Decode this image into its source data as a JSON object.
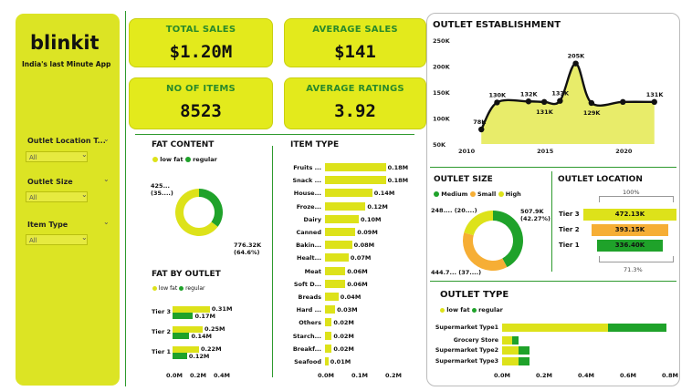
{
  "colors": {
    "yellow": "#dde21a",
    "green": "#1fa22a",
    "orange": "#f6ae35",
    "accent": "#e3ea1c"
  },
  "sidebar": {
    "logo": "blinkit",
    "tagline": "India's last Minute App",
    "filters": [
      {
        "label": "Outlet Location T...",
        "value": "All"
      },
      {
        "label": "Outlet Size",
        "value": "All"
      },
      {
        "label": "Item Type",
        "value": "All"
      }
    ]
  },
  "kpis": [
    {
      "label": "TOTAL SALES",
      "value": "$1.20M"
    },
    {
      "label": "AVERAGE SALES",
      "value": "$141"
    },
    {
      "label": "NO OF ITEMS",
      "value": "8523"
    },
    {
      "label": "AVERAGE RATINGS",
      "value": "3.92"
    }
  ],
  "fat_content": {
    "title": "FAT CONTENT",
    "legend": [
      "low fat",
      "regular"
    ],
    "label_regular_a": "425...",
    "label_regular_b": "(35....)",
    "label_low_a": "776.32K",
    "label_low_b": "(64.6%)"
  },
  "fat_by_outlet": {
    "title": "FAT BY OUTLET",
    "legend": [
      "low fat",
      "regular"
    ],
    "tiers": [
      "Tier 3",
      "Tier 2",
      "Tier 1"
    ],
    "x_ticks": [
      "0.0M",
      "0.2M",
      "0.4M"
    ]
  },
  "item_type": {
    "title": "ITEM TYPE",
    "x_ticks": [
      "0.0M",
      "0.1M",
      "0.2M"
    ]
  },
  "outlet_establishment": {
    "title": "OUTLET ESTABLISHMENT"
  },
  "outlet_size": {
    "title": "OUTLET SIZE",
    "legend": [
      "Medium",
      "Small",
      "High"
    ],
    "label_left_a": "248.... (20....)",
    "label_right_a": "507.9K",
    "label_right_b": "(42.27%)",
    "label_bottom": "444.7... (37....)"
  },
  "outlet_location": {
    "title": "OUTLET LOCATION",
    "top_pct": "100%",
    "bottom_pct": "71.3%",
    "tiers": [
      "Tier 3",
      "Tier 2",
      "Tier 1"
    ],
    "values": [
      "472.13K",
      "393.15K",
      "336.40K"
    ]
  },
  "outlet_type": {
    "title": "OUTLET TYPE",
    "legend": [
      "low fat",
      "regular"
    ],
    "x_ticks": [
      "0.0M",
      "0.2M",
      "0.4M",
      "0.6M",
      "0.8M"
    ]
  },
  "chart_data": [
    {
      "type": "line",
      "title": "OUTLET ESTABLISHMENT",
      "x": [
        2011,
        2012,
        2014,
        2015,
        2016,
        2017,
        2018,
        2020,
        2022
      ],
      "values": [
        78,
        130,
        132,
        131,
        133,
        205,
        129,
        131,
        131
      ],
      "data_labels": [
        "78K",
        "130K",
        "132K",
        "131K",
        "133K",
        "205K",
        "129K",
        "",
        "131K"
      ],
      "x_ticks": [
        "2010",
        "2015",
        "2020"
      ],
      "y_ticks": [
        "250K",
        "200K",
        "150K",
        "100K",
        "50K"
      ],
      "ylim": [
        50,
        250
      ]
    },
    {
      "type": "pie",
      "title": "FAT CONTENT",
      "categories": [
        "low fat",
        "regular"
      ],
      "values": [
        776.32,
        425
      ],
      "percent": [
        64.6,
        35.4
      ]
    },
    {
      "type": "bar",
      "title": "FAT BY OUTLET",
      "categories": [
        "Tier 3",
        "Tier 2",
        "Tier 1"
      ],
      "series": [
        {
          "name": "low fat",
          "values": [
            0.31,
            0.25,
            0.22
          ],
          "labels": [
            "0.31M",
            "0.25M",
            "0.22M"
          ]
        },
        {
          "name": "regular",
          "values": [
            0.17,
            0.14,
            0.12
          ],
          "labels": [
            "0.17M",
            "0.14M",
            "0.12M"
          ]
        }
      ],
      "xlim": [
        0,
        0.4
      ]
    },
    {
      "type": "bar",
      "title": "ITEM TYPE",
      "categories": [
        "Fruits ...",
        "Snack ...",
        "House...",
        "Froze...",
        "Dairy",
        "Canned",
        "Bakin...",
        "Healt...",
        "Meat",
        "Soft D...",
        "Breads",
        "Hard ...",
        "Others",
        "Starch...",
        "Breakf...",
        "Seafood"
      ],
      "values": [
        0.18,
        0.18,
        0.14,
        0.12,
        0.1,
        0.09,
        0.08,
        0.07,
        0.06,
        0.06,
        0.04,
        0.03,
        0.02,
        0.02,
        0.02,
        0.01
      ],
      "labels": [
        "0.18M",
        "0.18M",
        "0.14M",
        "0.12M",
        "0.10M",
        "0.09M",
        "0.08M",
        "0.07M",
        "0.06M",
        "0.06M",
        "0.04M",
        "0.03M",
        "0.02M",
        "0.02M",
        "0.02M",
        "0.01M"
      ],
      "xlim": [
        0,
        0.2
      ]
    },
    {
      "type": "pie",
      "title": "OUTLET SIZE",
      "categories": [
        "Medium",
        "Small",
        "High"
      ],
      "values": [
        507.9,
        444.7,
        248.99
      ],
      "percent": [
        42.27,
        37.0,
        20.7
      ]
    },
    {
      "type": "bar",
      "title": "OUTLET LOCATION",
      "categories": [
        "Tier 3",
        "Tier 2",
        "Tier 1"
      ],
      "values": [
        472.13,
        393.15,
        336.4
      ]
    },
    {
      "type": "bar",
      "title": "OUTLET TYPE",
      "categories": [
        "Supermarket Type1",
        "Grocery Store",
        "Supermarket Type2",
        "Supermarket Type3"
      ],
      "series": [
        {
          "name": "low fat",
          "values": [
            0.51,
            0.05,
            0.08,
            0.08
          ]
        },
        {
          "name": "regular",
          "values": [
            0.28,
            0.03,
            0.05,
            0.05
          ]
        }
      ],
      "xlim": [
        0,
        0.8
      ]
    }
  ]
}
